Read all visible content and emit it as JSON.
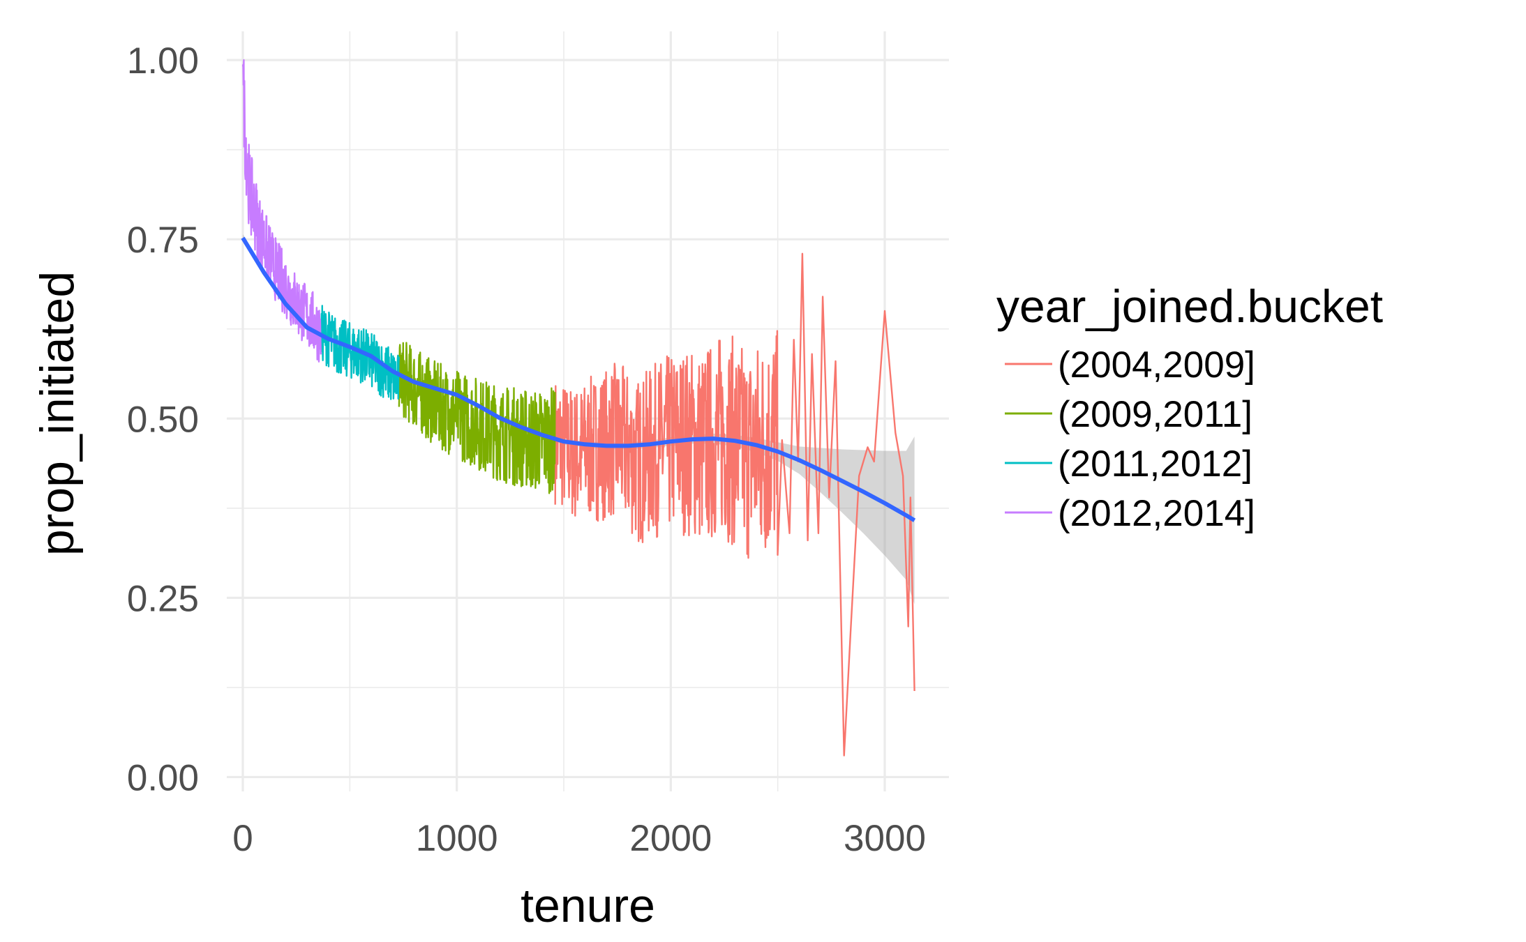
{
  "chart_data": {
    "type": "line",
    "xlabel": "tenure",
    "ylabel": "prop_initiated",
    "xlim": [
      -75,
      3300
    ],
    "ylim": [
      -0.02,
      1.04
    ],
    "x_ticks": [
      0,
      1000,
      2000,
      3000
    ],
    "x_tick_labels": [
      "0",
      "1000",
      "2000",
      "3000"
    ],
    "y_ticks": [
      0,
      0.25,
      0.5,
      0.75,
      1.0
    ],
    "y_tick_labels": [
      "0.00",
      "0.25",
      "0.50",
      "0.75",
      "1.00"
    ],
    "grid": true,
    "legend": {
      "title": "year_joined.bucket",
      "position": "right"
    },
    "series": [
      {
        "name": "(2004,2009]",
        "color": "#F8766D",
        "x_range": [
          1460,
          3139
        ],
        "points": [
          [
            1460,
            0.47
          ],
          [
            1550,
            0.45
          ],
          [
            1650,
            0.46
          ],
          [
            1750,
            0.47
          ],
          [
            1850,
            0.44
          ],
          [
            1950,
            0.46
          ],
          [
            2050,
            0.47
          ],
          [
            2150,
            0.46
          ],
          [
            2250,
            0.48
          ],
          [
            2350,
            0.45
          ],
          [
            2430,
            0.46
          ],
          [
            2480,
            0.47
          ],
          [
            2500,
            0.46
          ],
          [
            2520,
            0.47
          ],
          [
            2555,
            0.34
          ],
          [
            2575,
            0.61
          ],
          [
            2595,
            0.44
          ],
          [
            2615,
            0.73
          ],
          [
            2640,
            0.33
          ],
          [
            2660,
            0.59
          ],
          [
            2690,
            0.34
          ],
          [
            2710,
            0.67
          ],
          [
            2740,
            0.39
          ],
          [
            2770,
            0.58
          ],
          [
            2810,
            0.03
          ],
          [
            2840,
            0.2
          ],
          [
            2880,
            0.42
          ],
          [
            2920,
            0.46
          ],
          [
            2950,
            0.44
          ],
          [
            3000,
            0.65
          ],
          [
            3050,
            0.48
          ],
          [
            3085,
            0.42
          ],
          [
            3110,
            0.21
          ],
          [
            3120,
            0.39
          ],
          [
            3139,
            0.12
          ]
        ],
        "noise_range": [
          0.08,
          0.86
        ]
      },
      {
        "name": "(2009,2011]",
        "color": "#7CAE00",
        "x_range": [
          730,
          1460
        ],
        "points": [
          [
            730,
            0.56
          ],
          [
            900,
            0.52
          ],
          [
            1050,
            0.5
          ],
          [
            1200,
            0.48
          ],
          [
            1350,
            0.47
          ],
          [
            1460,
            0.47
          ]
        ],
        "noise_range": [
          0.31,
          0.75
        ]
      },
      {
        "name": "(2011,2012]",
        "color": "#00BFC4",
        "x_range": [
          365,
          730
        ],
        "points": [
          [
            365,
            0.62
          ],
          [
            450,
            0.6
          ],
          [
            550,
            0.59
          ],
          [
            650,
            0.57
          ],
          [
            730,
            0.55
          ]
        ],
        "noise_range": [
          0.47,
          0.72
        ]
      },
      {
        "name": "(2012,2014]",
        "color": "#C77CFF",
        "x_range": [
          0,
          365
        ],
        "points": [
          [
            0,
            1.0
          ],
          [
            10,
            0.9
          ],
          [
            30,
            0.82
          ],
          [
            80,
            0.76
          ],
          [
            150,
            0.71
          ],
          [
            250,
            0.66
          ],
          [
            365,
            0.62
          ]
        ],
        "noise_range": [
          0.57,
          1.0
        ]
      }
    ],
    "smooth": {
      "color": "#3366FF",
      "ribbon_color": "#999999",
      "x": [
        0,
        100,
        200,
        300,
        400,
        500,
        600,
        700,
        800,
        900,
        1000,
        1100,
        1200,
        1300,
        1400,
        1500,
        1600,
        1700,
        1800,
        1900,
        2000,
        2100,
        2200,
        2300,
        2400,
        2500,
        2600,
        2700,
        2800,
        2900,
        3000,
        3100,
        3139
      ],
      "y": [
        0.752,
        0.703,
        0.66,
        0.627,
        0.611,
        0.6,
        0.587,
        0.566,
        0.551,
        0.542,
        0.533,
        0.518,
        0.501,
        0.488,
        0.477,
        0.468,
        0.464,
        0.462,
        0.462,
        0.464,
        0.468,
        0.471,
        0.472,
        0.469,
        0.463,
        0.454,
        0.442,
        0.428,
        0.413,
        0.398,
        0.382,
        0.365,
        0.358
      ],
      "lower": [
        0.747,
        0.699,
        0.657,
        0.624,
        0.608,
        0.597,
        0.584,
        0.563,
        0.548,
        0.539,
        0.53,
        0.515,
        0.497,
        0.484,
        0.473,
        0.464,
        0.46,
        0.457,
        0.457,
        0.459,
        0.462,
        0.465,
        0.465,
        0.461,
        0.453,
        0.441,
        0.423,
        0.397,
        0.369,
        0.34,
        0.309,
        0.275,
        0.241
      ],
      "upper": [
        0.757,
        0.707,
        0.663,
        0.63,
        0.614,
        0.603,
        0.59,
        0.569,
        0.554,
        0.545,
        0.536,
        0.521,
        0.505,
        0.492,
        0.481,
        0.472,
        0.468,
        0.467,
        0.467,
        0.469,
        0.474,
        0.477,
        0.479,
        0.477,
        0.473,
        0.467,
        0.461,
        0.459,
        0.457,
        0.456,
        0.455,
        0.455,
        0.475
      ]
    }
  }
}
